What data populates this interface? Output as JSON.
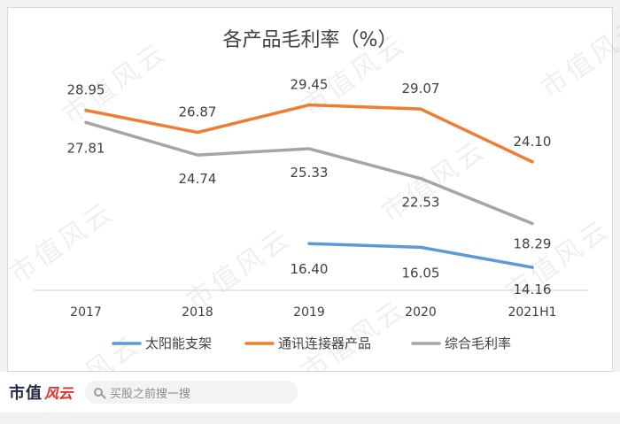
{
  "watermark": "市值风云",
  "footer": {
    "logo_text": "市值",
    "logo_mark": "风云",
    "search_placeholder": "买股之前搜一搜"
  },
  "chart_data": {
    "type": "line",
    "title": "各产品毛利率（%）",
    "categories": [
      "2017",
      "2018",
      "2019",
      "2020",
      "2021H1"
    ],
    "ylim": [
      12,
      32
    ],
    "grid": false,
    "legend_position": "bottom",
    "series": [
      {
        "name": "太阳能支架",
        "color": "#5b9bd5",
        "values": [
          null,
          null,
          16.4,
          16.05,
          14.16
        ],
        "labels": [
          null,
          null,
          "16.40",
          "16.05",
          "14.16"
        ]
      },
      {
        "name": "通讯连接器产品",
        "color": "#ed7d31",
        "values": [
          28.95,
          26.87,
          29.45,
          29.07,
          24.1
        ],
        "labels": [
          "28.95",
          "26.87",
          "29.45",
          "29.07",
          "24.10"
        ]
      },
      {
        "name": "综合毛利率",
        "color": "#a5a5a5",
        "values": [
          27.81,
          24.74,
          25.33,
          22.53,
          18.29
        ],
        "labels": [
          "27.81",
          "24.74",
          "25.33",
          "22.53",
          "18.29"
        ]
      }
    ]
  }
}
